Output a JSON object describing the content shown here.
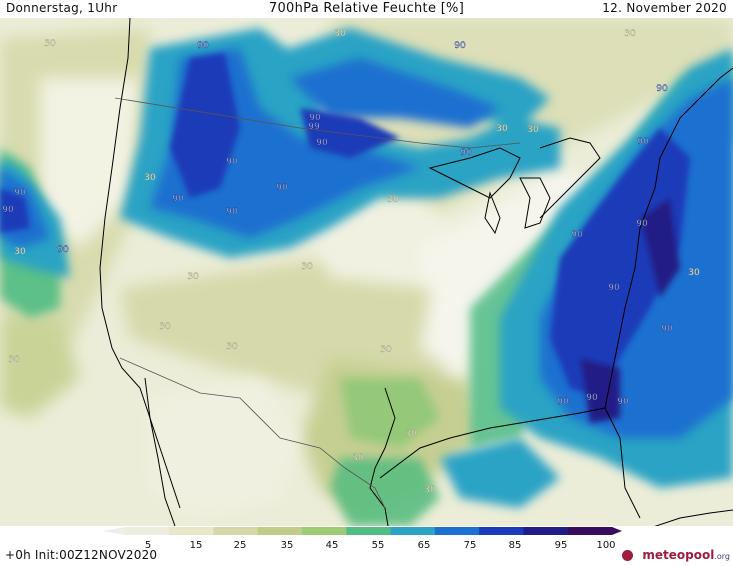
{
  "header": {
    "left": "Donnerstag, 1Uhr",
    "title": "700hPa Relative Feuchte [%]",
    "right": "12. November 2020"
  },
  "legend": {
    "ticks": [
      "5",
      "15",
      "25",
      "35",
      "45",
      "55",
      "65",
      "75",
      "85",
      "95",
      "100"
    ],
    "colors": [
      "#ededde",
      "#e6e6c8",
      "#d4d7a6",
      "#c0cc89",
      "#9dcb74",
      "#4fbd84",
      "#2aa3c5",
      "#1d6fd0",
      "#1a3bb8",
      "#241c86",
      "#3a0c5e"
    ]
  },
  "footer": {
    "init": "+0h Init:00Z12NOV2020",
    "logo_brand": "meteopool",
    "logo_tld": ".org"
  },
  "contour_labels": [
    {
      "text": "30"
    },
    {
      "text": "90"
    },
    {
      "text": "30"
    },
    {
      "text": "90"
    },
    {
      "text": "30"
    },
    {
      "text": "90"
    },
    {
      "text": "90"
    },
    {
      "text": "99"
    },
    {
      "text": "90"
    },
    {
      "text": "90"
    },
    {
      "text": "30"
    },
    {
      "text": "90"
    },
    {
      "text": "90"
    },
    {
      "text": "30"
    },
    {
      "text": "90"
    },
    {
      "text": "90"
    },
    {
      "text": "90"
    },
    {
      "text": "90"
    },
    {
      "text": "90"
    },
    {
      "text": "30"
    },
    {
      "text": "30"
    },
    {
      "text": "30"
    },
    {
      "text": "30"
    },
    {
      "text": "30"
    },
    {
      "text": "30"
    },
    {
      "text": "30"
    },
    {
      "text": "30"
    },
    {
      "text": "90"
    },
    {
      "text": "90"
    },
    {
      "text": "30"
    },
    {
      "text": "90"
    },
    {
      "text": "90"
    },
    {
      "text": "90"
    },
    {
      "text": "90"
    },
    {
      "text": "90"
    },
    {
      "text": "30"
    },
    {
      "text": "30"
    },
    {
      "text": "30"
    },
    {
      "text": "90"
    },
    {
      "text": "30"
    }
  ]
}
